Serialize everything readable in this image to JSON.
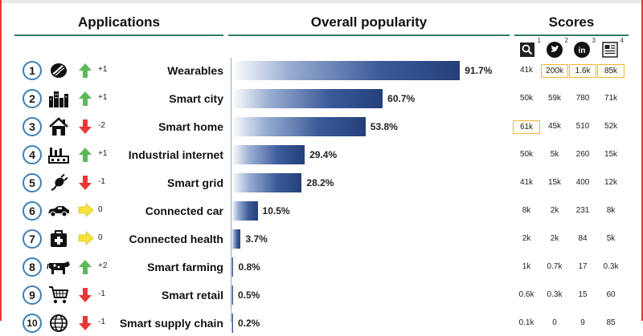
{
  "headers": {
    "applications": "Applications",
    "popularity": "Overall popularity",
    "scores": "Scores"
  },
  "score_sources": [
    {
      "name": "search-icon",
      "note": "1"
    },
    {
      "name": "twitter-icon",
      "note": "2"
    },
    {
      "name": "linkedin-icon",
      "note": "3"
    },
    {
      "name": "news-icon",
      "note": "4"
    }
  ],
  "highlight_color": "#f2b632",
  "bar_color": "#24407a",
  "chart_data": {
    "type": "bar",
    "orientation": "horizontal",
    "xlim": [
      0,
      100
    ],
    "categories": [
      "Wearables",
      "Smart city",
      "Smart home",
      "Industrial internet",
      "Smart grid",
      "Connected car",
      "Connected health",
      "Smart farming",
      "Smart retail",
      "Smart supply chain"
    ],
    "values": [
      91.7,
      60.7,
      53.8,
      29.4,
      28.2,
      10.5,
      3.7,
      0.8,
      0.5,
      0.2
    ],
    "value_labels": [
      "91.7%",
      "60.7%",
      "53.8%",
      "29.4%",
      "28.2%",
      "10.5%",
      "3.7%",
      "0.8%",
      "0.5%",
      "0.2%"
    ]
  },
  "rows": [
    {
      "rank": "1",
      "icon": "wearable-icon",
      "trend": "up",
      "change": "+1",
      "name": "Wearables",
      "scores": [
        "41k",
        "200k",
        "1.6k",
        "85k"
      ],
      "highlight": [
        false,
        true,
        true,
        true
      ]
    },
    {
      "rank": "2",
      "icon": "city-icon",
      "trend": "up",
      "change": "+1",
      "name": "Smart city",
      "scores": [
        "50k",
        "59k",
        "780",
        "71k"
      ],
      "highlight": [
        false,
        false,
        false,
        false
      ]
    },
    {
      "rank": "3",
      "icon": "home-icon",
      "trend": "down",
      "change": "-2",
      "name": "Smart home",
      "scores": [
        "61k",
        "45k",
        "510",
        "52k"
      ],
      "highlight": [
        true,
        false,
        false,
        false
      ]
    },
    {
      "rank": "4",
      "icon": "factory-icon",
      "trend": "up",
      "change": "+1",
      "name": "Industrial internet",
      "scores": [
        "50k",
        "5k",
        "260",
        "15k"
      ],
      "highlight": [
        false,
        false,
        false,
        false
      ]
    },
    {
      "rank": "5",
      "icon": "plug-icon",
      "trend": "down",
      "change": "-1",
      "name": "Smart grid",
      "scores": [
        "41k",
        "15k",
        "400",
        "12k"
      ],
      "highlight": [
        false,
        false,
        false,
        false
      ]
    },
    {
      "rank": "6",
      "icon": "car-icon",
      "trend": "same",
      "change": "0",
      "name": "Connected car",
      "scores": [
        "8k",
        "2k",
        "231",
        "8k"
      ],
      "highlight": [
        false,
        false,
        false,
        false
      ]
    },
    {
      "rank": "7",
      "icon": "medkit-icon",
      "trend": "same",
      "change": "0",
      "name": "Connected health",
      "scores": [
        "2k",
        "2k",
        "84",
        "5k"
      ],
      "highlight": [
        false,
        false,
        false,
        false
      ]
    },
    {
      "rank": "8",
      "icon": "cow-icon",
      "trend": "up",
      "change": "+2",
      "name": "Smart farming",
      "scores": [
        "1k",
        "0.7k",
        "17",
        "0.3k"
      ],
      "highlight": [
        false,
        false,
        false,
        false
      ]
    },
    {
      "rank": "9",
      "icon": "cart-icon",
      "trend": "down",
      "change": "-1",
      "name": "Smart retail",
      "scores": [
        "0.6k",
        "0.3k",
        "15",
        "60"
      ],
      "highlight": [
        false,
        false,
        false,
        false
      ]
    },
    {
      "rank": "10",
      "icon": "globe-icon",
      "trend": "down",
      "change": "-1",
      "name": "Smart supply chain",
      "scores": [
        "0.1k",
        "0",
        "9",
        "85"
      ],
      "highlight": [
        false,
        false,
        false,
        false
      ]
    }
  ]
}
